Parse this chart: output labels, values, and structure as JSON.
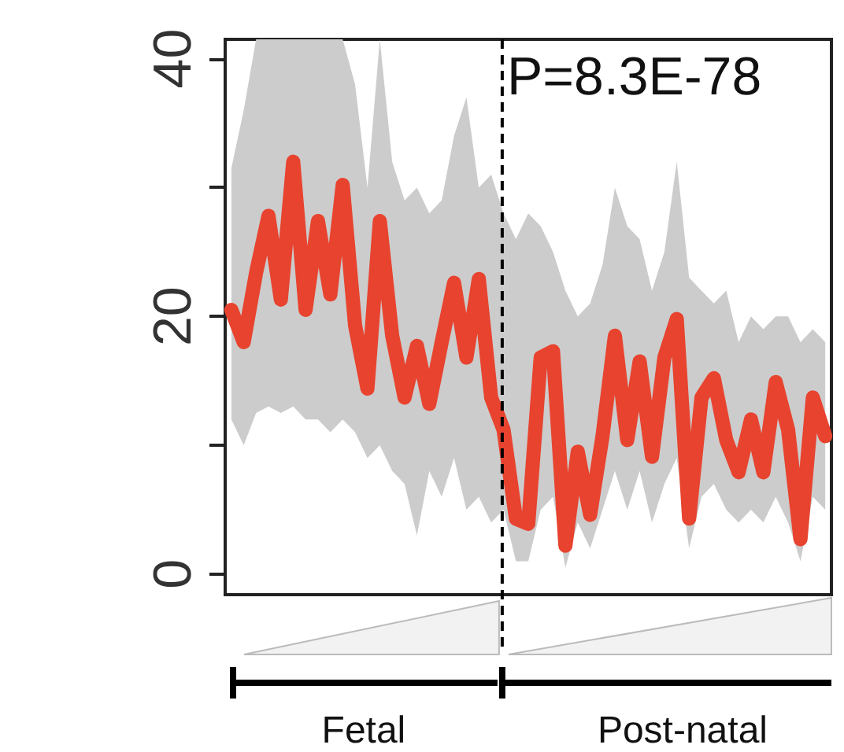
{
  "chart_data": {
    "type": "line",
    "categories": [
      null,
      null,
      null,
      null,
      null,
      null,
      null,
      null,
      null,
      null,
      null,
      null,
      null,
      null,
      null,
      null,
      null,
      null,
      null,
      null,
      null,
      null,
      null,
      null,
      null,
      null,
      null,
      null,
      null,
      null,
      null,
      null,
      null,
      null,
      null,
      null,
      null,
      null,
      null,
      null,
      null,
      null,
      null,
      null,
      null,
      null,
      null,
      null,
      null
    ],
    "series": [
      {
        "color": "#e8432f",
        "values": [
          20.5,
          18,
          23.4,
          27.8,
          21.3,
          32,
          20.5,
          27.4,
          21.7,
          30.2,
          19.3,
          14.4,
          27.4,
          18.5,
          13.7,
          17.7,
          13.2,
          18,
          22.6,
          16.8,
          22.9,
          13.7,
          11.2,
          4.3,
          3.9,
          16.8,
          17.3,
          2.2,
          9.5,
          4.6,
          10.7,
          18.5,
          10.4,
          16.5,
          9.1,
          16.8,
          19.8,
          4.3,
          13.7,
          15.2,
          10.4,
          7.9,
          12,
          7.9,
          14.9,
          11.2,
          2.7,
          13.7,
          10.7
        ],
        "lower": [
          12,
          10,
          12.5,
          13,
          12.5,
          13,
          12,
          12,
          11,
          12,
          11,
          9,
          10,
          8,
          7,
          3,
          8,
          6,
          9,
          5,
          6,
          4,
          5,
          1,
          1,
          5,
          6,
          0.5,
          4,
          2,
          5,
          8,
          5,
          8,
          4,
          7,
          9,
          2,
          6,
          7,
          5,
          4,
          5,
          4,
          6,
          4,
          1,
          6,
          5
        ],
        "upper": [
          31.5,
          36,
          41.5,
          41.5,
          41.5,
          41.5,
          41.5,
          41.5,
          41.5,
          41.5,
          38,
          30,
          41.5,
          32,
          29,
          30,
          28,
          29,
          34,
          37,
          30,
          31,
          28,
          26,
          28,
          27,
          25,
          22,
          20,
          21,
          24,
          30,
          27,
          26,
          22,
          25,
          32,
          23,
          22,
          21,
          22,
          18,
          20,
          19,
          20,
          20,
          18,
          19,
          18
        ]
      }
    ],
    "ylim": [
      -1.6,
      41.5
    ],
    "yticks": [
      0,
      {
        "value": 10,
        "label": null
      },
      20,
      {
        "value": 30,
        "label": null
      },
      40
    ],
    "tick_labels": "y",
    "grid": false,
    "line_style": "solid",
    "annotations": [
      "P=8.3E-78",
      "Fetal",
      "Post-natal"
    ]
  }
}
